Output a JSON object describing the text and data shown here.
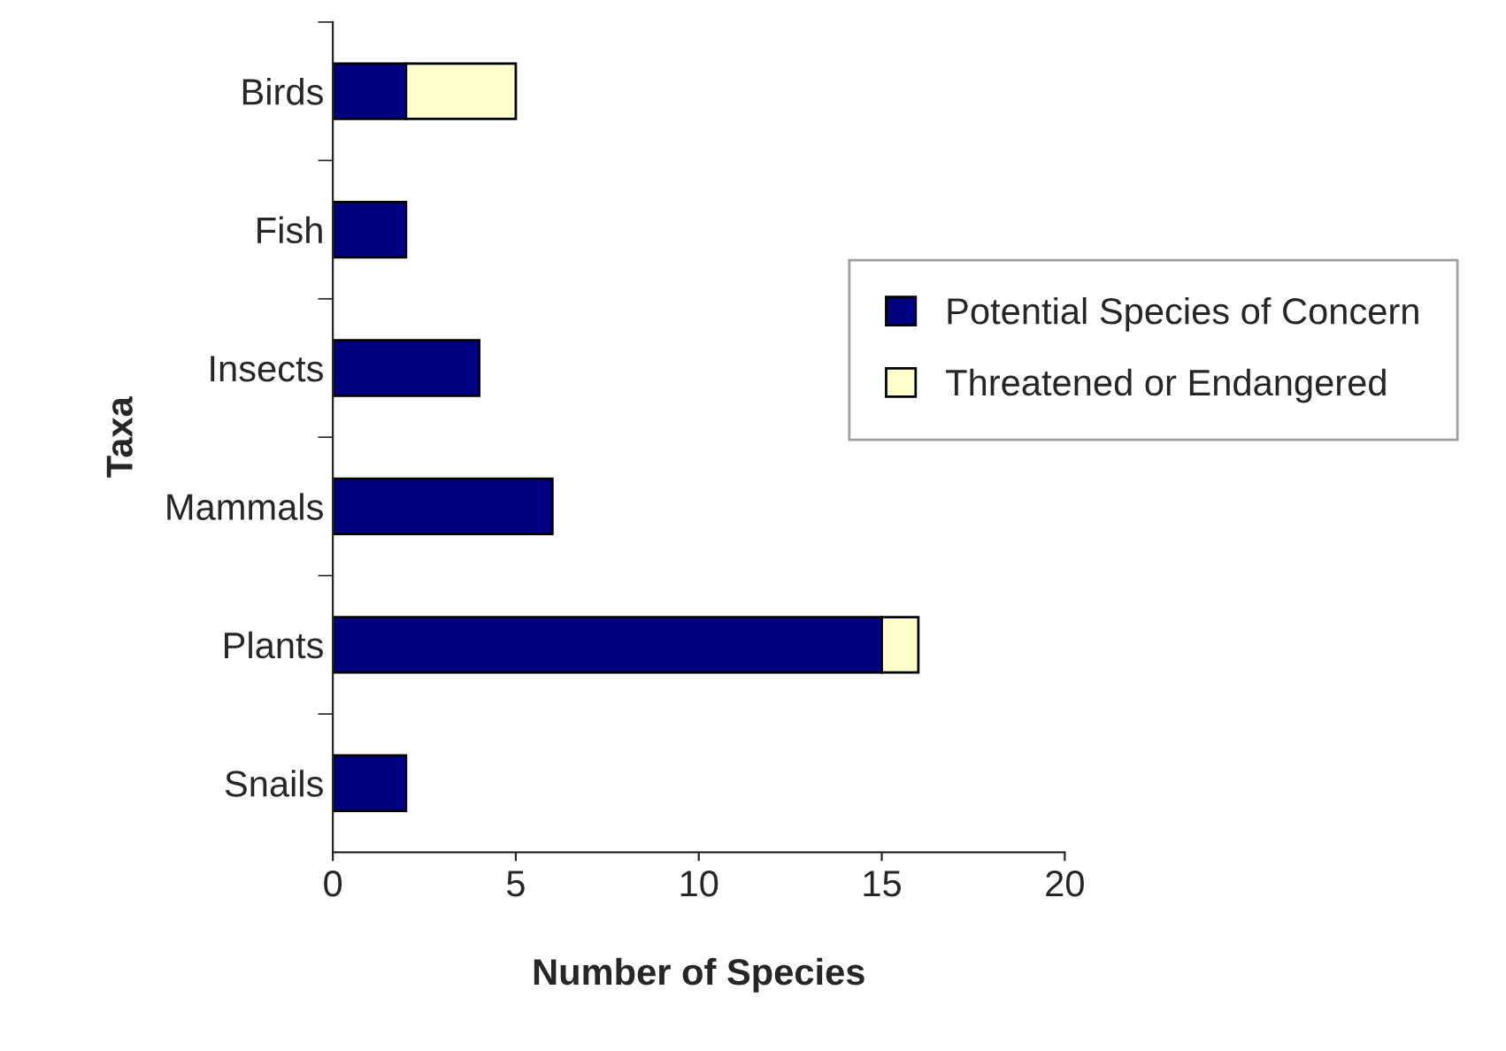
{
  "chart_data": {
    "type": "bar",
    "orientation": "horizontal",
    "stacked": true,
    "xlabel": "Number of Species",
    "ylabel": "Taxa",
    "categories": [
      "Birds",
      "Fish",
      "Insects",
      "Mammals",
      "Plants",
      "Snails"
    ],
    "series": [
      {
        "name": "Potential Species of Concern",
        "color": "#000080",
        "values": [
          2,
          2,
          4,
          6,
          15,
          2
        ]
      },
      {
        "name": "Threatened or Endangered",
        "color": "#ffffcc",
        "values": [
          3,
          null,
          null,
          null,
          1,
          null
        ]
      }
    ],
    "xlim": [
      0,
      20
    ],
    "xticks": [
      0,
      5,
      10,
      15,
      20
    ],
    "grid": false,
    "legend": "right"
  }
}
